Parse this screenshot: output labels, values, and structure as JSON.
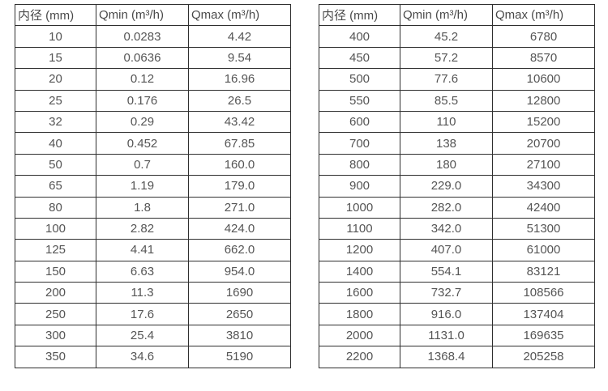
{
  "page": {
    "background_color": "#ffffff",
    "border_color": "#2f2f2f",
    "text_color": "#555555"
  },
  "tables": [
    {
      "name": "flow-spec-table-small-diameters",
      "headers": [
        "内径 (mm)",
        "Qmin (m³/h)",
        "Qmax (m³/h)"
      ],
      "rows": [
        [
          "10",
          "0.0283",
          "4.42"
        ],
        [
          "15",
          "0.0636",
          "9.54"
        ],
        [
          "20",
          "0.12",
          "16.96"
        ],
        [
          "25",
          "0.176",
          "26.5"
        ],
        [
          "32",
          "0.29",
          "43.42"
        ],
        [
          "40",
          "0.452",
          "67.85"
        ],
        [
          "50",
          "0.7",
          "160.0"
        ],
        [
          "65",
          "1.19",
          "179.0"
        ],
        [
          "80",
          "1.8",
          "271.0"
        ],
        [
          "100",
          "2.82",
          "424.0"
        ],
        [
          "125",
          "4.41",
          "662.0"
        ],
        [
          "150",
          "6.63",
          "954.0"
        ],
        [
          "200",
          "11.3",
          "1690"
        ],
        [
          "250",
          "17.6",
          "2650"
        ],
        [
          "300",
          "25.4",
          "3810"
        ],
        [
          "350",
          "34.6",
          "5190"
        ]
      ]
    },
    {
      "name": "flow-spec-table-large-diameters",
      "headers": [
        "内径 (mm)",
        "Qmin (m³/h)",
        "Qmax (m³/h)"
      ],
      "rows": [
        [
          "400",
          "45.2",
          "6780"
        ],
        [
          "450",
          "57.2",
          "8570"
        ],
        [
          "500",
          "77.6",
          "10600"
        ],
        [
          "550",
          "85.5",
          "12800"
        ],
        [
          "600",
          "110",
          "15200"
        ],
        [
          "700",
          "138",
          "20700"
        ],
        [
          "800",
          "180",
          "27100"
        ],
        [
          "900",
          "229.0",
          "34300"
        ],
        [
          "1000",
          "282.0",
          "42400"
        ],
        [
          "1100",
          "342.0",
          "51300"
        ],
        [
          "1200",
          "407.0",
          "61000"
        ],
        [
          "1400",
          "554.1",
          "83121"
        ],
        [
          "1600",
          "732.7",
          "108566"
        ],
        [
          "1800",
          "916.0",
          "137404"
        ],
        [
          "2000",
          "1131.0",
          "169635"
        ],
        [
          "2200",
          "1368.4",
          "205258"
        ]
      ]
    }
  ]
}
